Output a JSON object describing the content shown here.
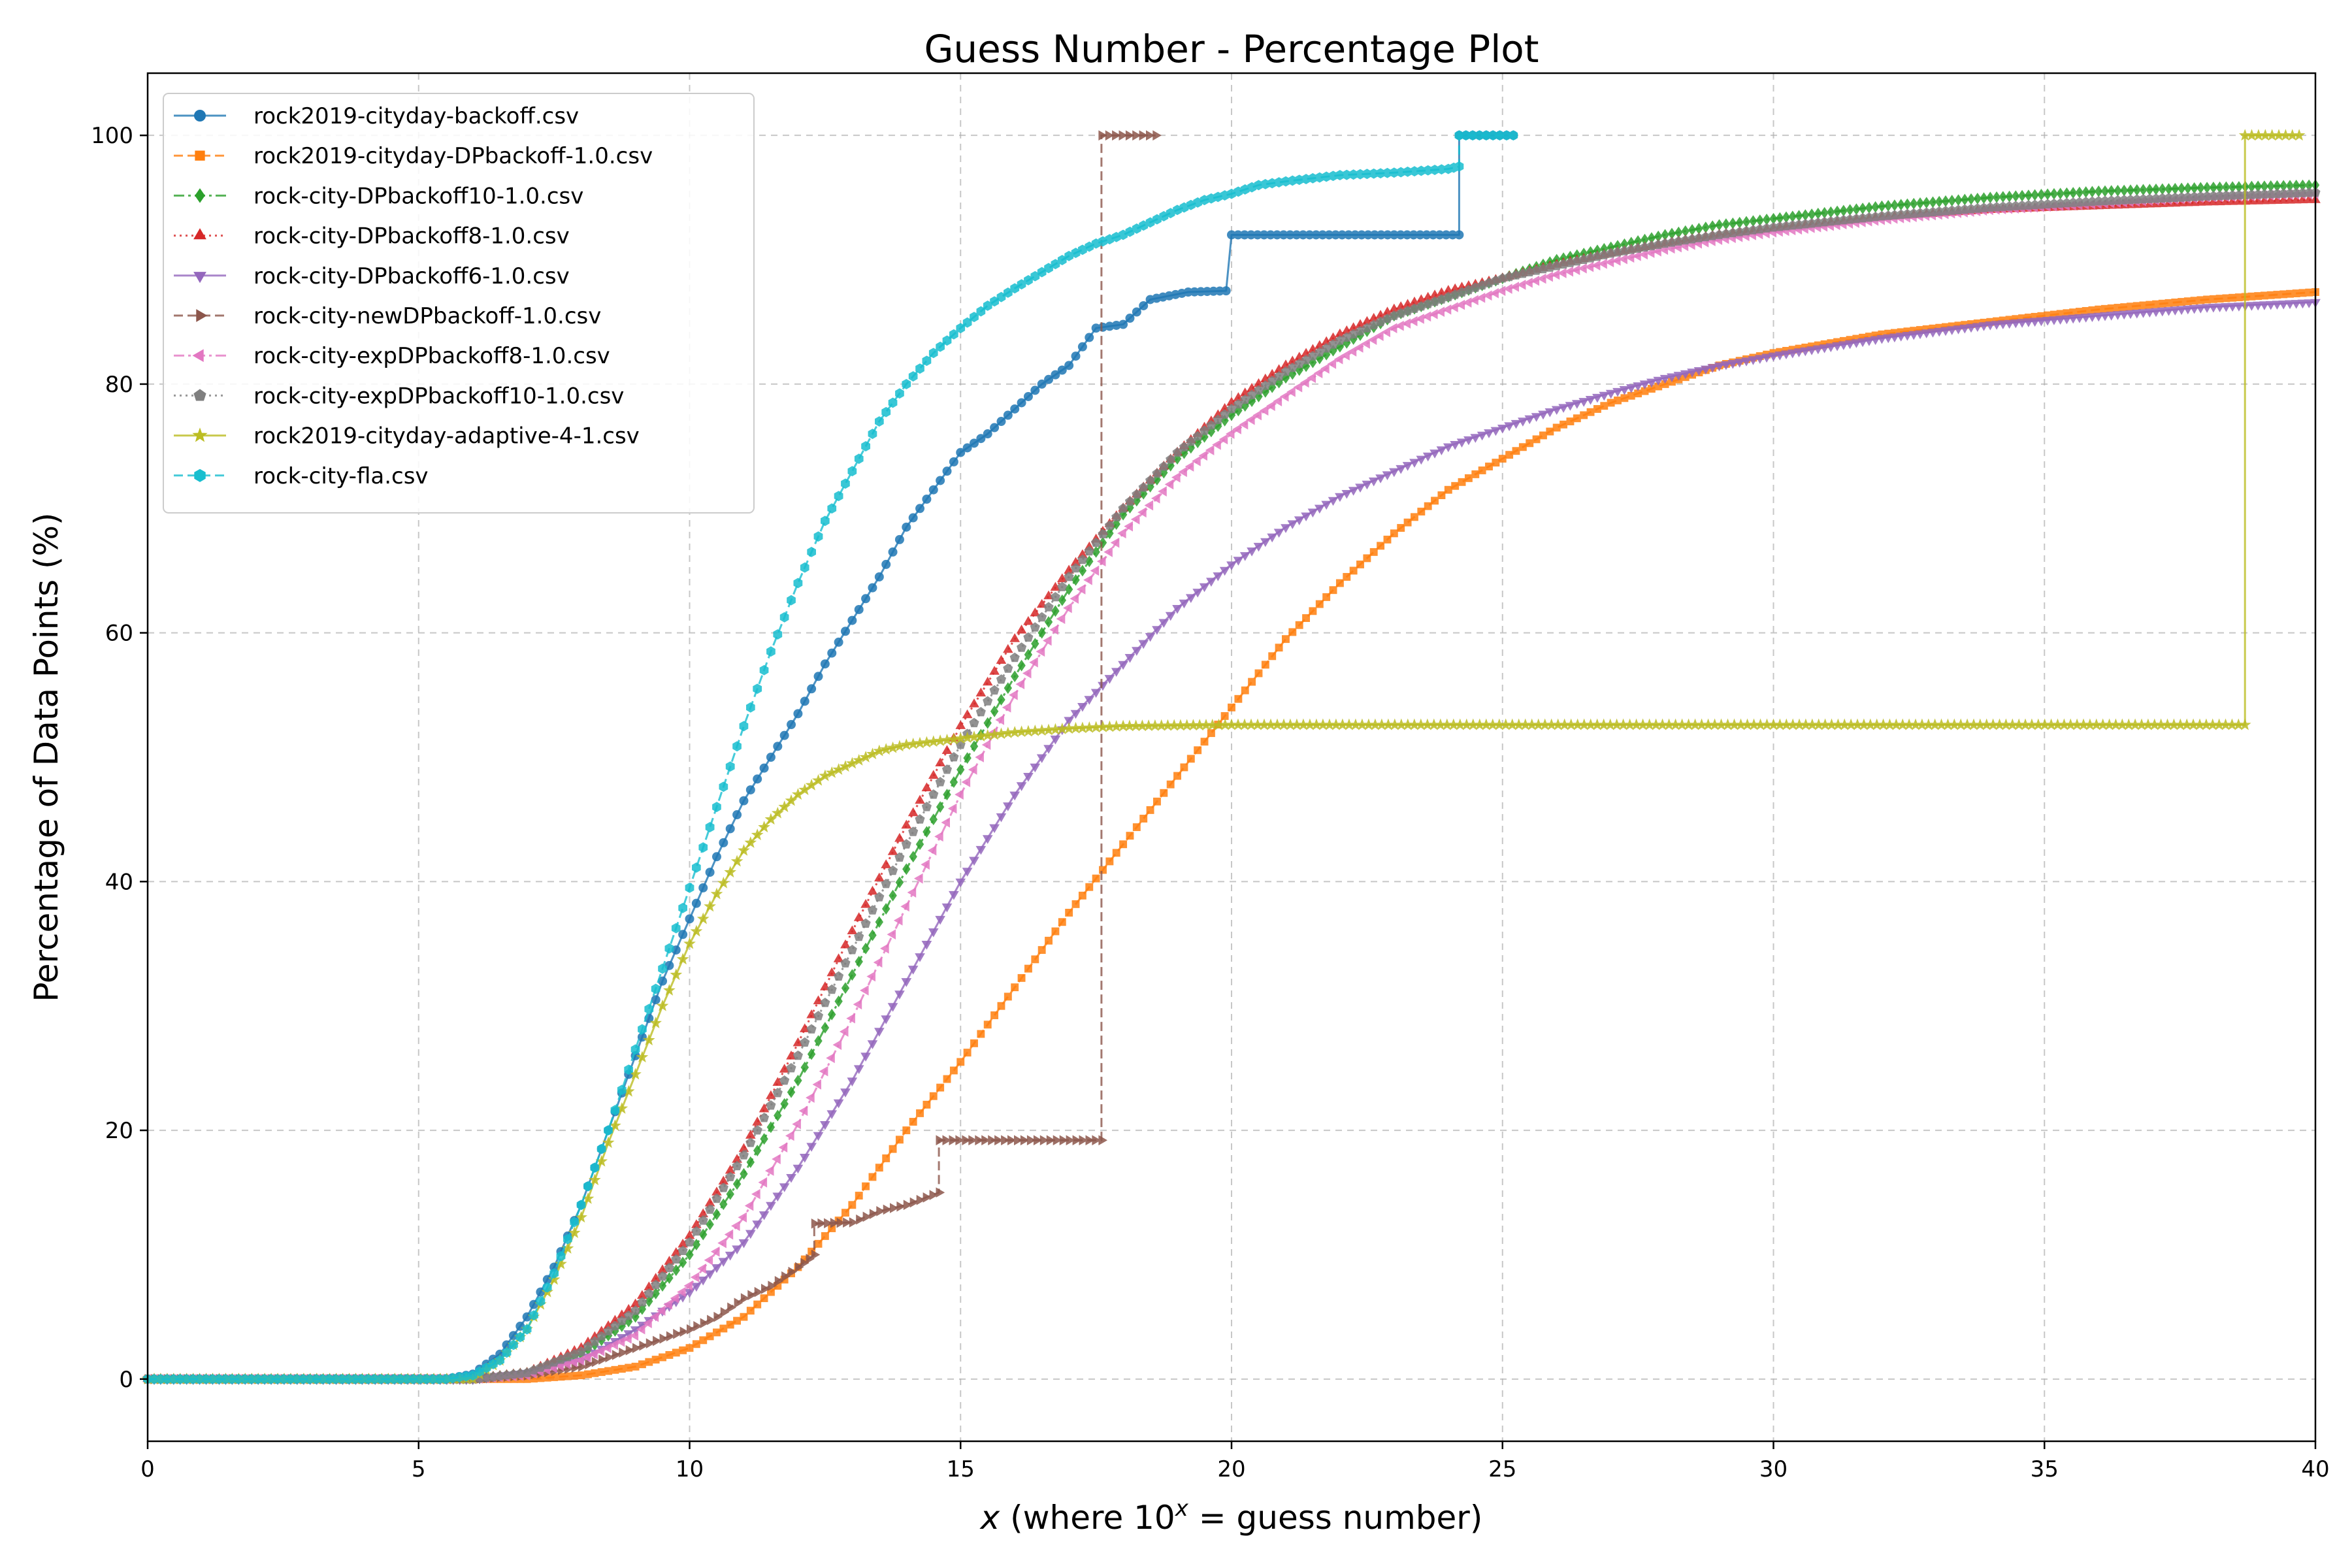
{
  "chart_data": {
    "type": "line",
    "title": "Guess Number - Percentage Plot",
    "xlabel_prefix": "x",
    "xlabel_middle": " (where 10",
    "xlabel_sup": "x",
    "xlabel_suffix": " = guess number)",
    "ylabel": "Percentage of Data Points (%)",
    "xlim": [
      0,
      40
    ],
    "ylim": [
      -5,
      105
    ],
    "xticks": [
      0,
      5,
      10,
      15,
      20,
      25,
      30,
      35,
      40
    ],
    "yticks": [
      0,
      20,
      40,
      60,
      80,
      100
    ],
    "grid": true,
    "legend_position": "top-left",
    "series": [
      {
        "name": "rock2019-cityday-backoff.csv",
        "color": "#1f77b4",
        "linestyle": "solid",
        "marker": "circle",
        "points": [
          [
            0,
            0
          ],
          [
            5,
            0
          ],
          [
            5.5,
            0
          ],
          [
            6,
            0.4
          ],
          [
            6.5,
            2
          ],
          [
            7,
            5
          ],
          [
            7.5,
            9
          ],
          [
            8,
            14
          ],
          [
            8.5,
            20
          ],
          [
            9,
            26
          ],
          [
            9.5,
            32
          ],
          [
            10,
            37
          ],
          [
            10.5,
            42
          ],
          [
            11,
            46.5
          ],
          [
            11.5,
            50
          ],
          [
            12,
            53.5
          ],
          [
            12.5,
            57.5
          ],
          [
            13,
            61
          ],
          [
            13.5,
            64.5
          ],
          [
            14,
            68.5
          ],
          [
            14.5,
            71.5
          ],
          [
            15,
            74.5
          ],
          [
            15.5,
            76
          ],
          [
            16,
            78
          ],
          [
            16.5,
            80
          ],
          [
            17,
            81.5
          ],
          [
            17.5,
            84.5
          ],
          [
            18,
            84.8
          ],
          [
            18.5,
            86.8
          ],
          [
            19.2,
            87.4
          ],
          [
            19.9,
            87.5
          ],
          [
            20,
            92
          ],
          [
            24.2,
            92
          ],
          [
            24.2,
            100
          ],
          [
            25.2,
            100
          ]
        ]
      },
      {
        "name": "rock2019-cityday-DPbackoff-1.0.csv",
        "color": "#ff7f0e",
        "linestyle": "dashed",
        "marker": "square",
        "points": [
          [
            0,
            0
          ],
          [
            7,
            0
          ],
          [
            8,
            0.3
          ],
          [
            9,
            1
          ],
          [
            10,
            2.5
          ],
          [
            11,
            5
          ],
          [
            12,
            9
          ],
          [
            13,
            14
          ],
          [
            14,
            20
          ],
          [
            15,
            25.5
          ],
          [
            16,
            31.5
          ],
          [
            17,
            37.5
          ],
          [
            18,
            43
          ],
          [
            19,
            48.5
          ],
          [
            20,
            54
          ],
          [
            21,
            59.5
          ],
          [
            22,
            64
          ],
          [
            23,
            68
          ],
          [
            24,
            71.5
          ],
          [
            25,
            74
          ],
          [
            26,
            76.5
          ],
          [
            27,
            78.5
          ],
          [
            28,
            80
          ],
          [
            29,
            81.5
          ],
          [
            30,
            82.5
          ],
          [
            32,
            84
          ],
          [
            34,
            85
          ],
          [
            36,
            86
          ],
          [
            38,
            86.8
          ],
          [
            40,
            87.4
          ]
        ]
      },
      {
        "name": "rock-city-DPbackoff10-1.0.csv",
        "color": "#2ca02c",
        "linestyle": "dashdot",
        "marker": "diamond",
        "points": [
          [
            0,
            0
          ],
          [
            6,
            0
          ],
          [
            7,
            0.5
          ],
          [
            8,
            2
          ],
          [
            9,
            5
          ],
          [
            10,
            10
          ],
          [
            11,
            16.5
          ],
          [
            12,
            24
          ],
          [
            13,
            32.5
          ],
          [
            14,
            41
          ],
          [
            15,
            49
          ],
          [
            16,
            56.5
          ],
          [
            17,
            63.5
          ],
          [
            18,
            69.5
          ],
          [
            19,
            74
          ],
          [
            20,
            77.5
          ],
          [
            21,
            80.5
          ],
          [
            22,
            83
          ],
          [
            23,
            85.5
          ],
          [
            24,
            87
          ],
          [
            25,
            88.5
          ],
          [
            26,
            90
          ],
          [
            27,
            91
          ],
          [
            28,
            92
          ],
          [
            29,
            92.8
          ],
          [
            30,
            93.3
          ],
          [
            32,
            94.3
          ],
          [
            34,
            95
          ],
          [
            36,
            95.5
          ],
          [
            38,
            95.8
          ],
          [
            40,
            96
          ]
        ]
      },
      {
        "name": "rock-city-DPbackoff8-1.0.csv",
        "color": "#d62728",
        "linestyle": "dotted",
        "marker": "triangle-up",
        "points": [
          [
            0,
            0
          ],
          [
            6,
            0
          ],
          [
            7,
            0.5
          ],
          [
            8,
            2.5
          ],
          [
            9,
            6
          ],
          [
            10,
            11.5
          ],
          [
            11,
            18.5
          ],
          [
            12,
            27
          ],
          [
            13,
            36
          ],
          [
            14,
            44.5
          ],
          [
            15,
            52.5
          ],
          [
            16,
            59.5
          ],
          [
            17,
            65
          ],
          [
            18,
            70
          ],
          [
            19,
            74.5
          ],
          [
            20,
            78.5
          ],
          [
            21,
            81.5
          ],
          [
            22,
            84
          ],
          [
            23,
            86
          ],
          [
            24,
            87.5
          ],
          [
            25,
            88.5
          ],
          [
            26,
            89.6
          ],
          [
            27,
            90.5
          ],
          [
            28,
            91.3
          ],
          [
            29,
            92
          ],
          [
            30,
            92.5
          ],
          [
            32,
            93.4
          ],
          [
            34,
            94
          ],
          [
            36,
            94.3
          ],
          [
            38,
            94.6
          ],
          [
            40,
            94.8
          ]
        ]
      },
      {
        "name": "rock-city-DPbackoff6-1.0.csv",
        "color": "#9467bd",
        "linestyle": "solid",
        "marker": "triangle-down",
        "points": [
          [
            0,
            0
          ],
          [
            6,
            0
          ],
          [
            7,
            0.5
          ],
          [
            8,
            1.5
          ],
          [
            9,
            4
          ],
          [
            10,
            7
          ],
          [
            11,
            11
          ],
          [
            12,
            17
          ],
          [
            13,
            24
          ],
          [
            14,
            32
          ],
          [
            15,
            40
          ],
          [
            16,
            47
          ],
          [
            17,
            53
          ],
          [
            18,
            57.5
          ],
          [
            19,
            62
          ],
          [
            20,
            65.5
          ],
          [
            21,
            68.5
          ],
          [
            22,
            71
          ],
          [
            23,
            73
          ],
          [
            24,
            75
          ],
          [
            25,
            76.5
          ],
          [
            26,
            78
          ],
          [
            27,
            79.3
          ],
          [
            28,
            80.5
          ],
          [
            29,
            81.5
          ],
          [
            30,
            82.3
          ],
          [
            32,
            83.7
          ],
          [
            34,
            84.8
          ],
          [
            36,
            85.5
          ],
          [
            38,
            86.2
          ],
          [
            40,
            86.6
          ]
        ]
      },
      {
        "name": "rock-city-newDPbackoff-1.0.csv",
        "color": "#8c564b",
        "linestyle": "dashed",
        "marker": "triangle-right",
        "points": [
          [
            0,
            0
          ],
          [
            6,
            0
          ],
          [
            7,
            0.3
          ],
          [
            8,
            1
          ],
          [
            9,
            2.5
          ],
          [
            10,
            4
          ],
          [
            10.5,
            5
          ],
          [
            11,
            6.5
          ],
          [
            11.5,
            7.5
          ],
          [
            12,
            9
          ],
          [
            12.3,
            10
          ],
          [
            12.3,
            12.5
          ],
          [
            13,
            12.6
          ],
          [
            13.5,
            13.5
          ],
          [
            14,
            14
          ],
          [
            14.6,
            15
          ],
          [
            14.6,
            19.2
          ],
          [
            17.6,
            19.2
          ],
          [
            17.6,
            100
          ],
          [
            18.6,
            100
          ]
        ]
      },
      {
        "name": "rock-city-expDPbackoff8-1.0.csv",
        "color": "#e377c2",
        "linestyle": "dashdot",
        "marker": "triangle-left",
        "points": [
          [
            0,
            0
          ],
          [
            6,
            0
          ],
          [
            7,
            0.3
          ],
          [
            8,
            1.5
          ],
          [
            9,
            3.5
          ],
          [
            10,
            7.5
          ],
          [
            11,
            13
          ],
          [
            12,
            20.5
          ],
          [
            13,
            29
          ],
          [
            14,
            38
          ],
          [
            15,
            47
          ],
          [
            16,
            55
          ],
          [
            17,
            62
          ],
          [
            18,
            68
          ],
          [
            19,
            72.5
          ],
          [
            20,
            76
          ],
          [
            21,
            79
          ],
          [
            22,
            82
          ],
          [
            23,
            84.5
          ],
          [
            24,
            86
          ],
          [
            25,
            87.5
          ],
          [
            26,
            88.8
          ],
          [
            27,
            89.8
          ],
          [
            28,
            90.8
          ],
          [
            29,
            91.6
          ],
          [
            30,
            92.2
          ],
          [
            32,
            93.2
          ],
          [
            34,
            94
          ],
          [
            36,
            94.5
          ],
          [
            38,
            95
          ],
          [
            40,
            95.3
          ]
        ]
      },
      {
        "name": "rock-city-expDPbackoff10-1.0.csv",
        "color": "#7f7f7f",
        "linestyle": "dotted",
        "marker": "pentagon",
        "points": [
          [
            0,
            0
          ],
          [
            6,
            0
          ],
          [
            7,
            0.5
          ],
          [
            8,
            2.2
          ],
          [
            9,
            5.5
          ],
          [
            10,
            11
          ],
          [
            11,
            18
          ],
          [
            12,
            26
          ],
          [
            13,
            34.5
          ],
          [
            14,
            43
          ],
          [
            15,
            51
          ],
          [
            16,
            58
          ],
          [
            17,
            64.5
          ],
          [
            18,
            70
          ],
          [
            19,
            74.5
          ],
          [
            20,
            78
          ],
          [
            21,
            81
          ],
          [
            22,
            83.5
          ],
          [
            23,
            85.5
          ],
          [
            24,
            87
          ],
          [
            25,
            88.5
          ],
          [
            26,
            89.5
          ],
          [
            27,
            90.5
          ],
          [
            28,
            91.3
          ],
          [
            29,
            92
          ],
          [
            30,
            92.6
          ],
          [
            32,
            93.5
          ],
          [
            34,
            94.2
          ],
          [
            36,
            94.7
          ],
          [
            38,
            95.1
          ],
          [
            40,
            95.4
          ]
        ]
      },
      {
        "name": "rock2019-cityday-adaptive-4-1.csv",
        "color": "#bcbd22",
        "linestyle": "solid",
        "marker": "star",
        "points": [
          [
            0,
            0
          ],
          [
            6,
            0
          ],
          [
            6.5,
            1.5
          ],
          [
            7,
            4
          ],
          [
            7.5,
            8
          ],
          [
            8,
            13
          ],
          [
            8.5,
            19
          ],
          [
            9,
            24.5
          ],
          [
            9.5,
            30
          ],
          [
            10,
            35
          ],
          [
            10.5,
            39
          ],
          [
            11,
            42.5
          ],
          [
            11.5,
            45
          ],
          [
            12,
            47
          ],
          [
            12.5,
            48.5
          ],
          [
            13,
            49.5
          ],
          [
            13.5,
            50.5
          ],
          [
            14,
            51
          ],
          [
            15,
            51.5
          ],
          [
            16,
            52
          ],
          [
            17,
            52.3
          ],
          [
            18,
            52.5
          ],
          [
            20,
            52.6
          ],
          [
            30,
            52.6
          ],
          [
            38.7,
            52.6
          ],
          [
            38.7,
            100
          ],
          [
            39.7,
            100
          ]
        ]
      },
      {
        "name": "rock-city-fla.csv",
        "color": "#17becf",
        "linestyle": "dashed",
        "marker": "hexagon",
        "points": [
          [
            0,
            0
          ],
          [
            5.5,
            0
          ],
          [
            6,
            0.3
          ],
          [
            6.5,
            1.5
          ],
          [
            7,
            4
          ],
          [
            7.5,
            8.5
          ],
          [
            8,
            14
          ],
          [
            8.5,
            20
          ],
          [
            9,
            26.5
          ],
          [
            9.5,
            33
          ],
          [
            10,
            39.5
          ],
          [
            10.5,
            46
          ],
          [
            11,
            52.5
          ],
          [
            11.5,
            58.5
          ],
          [
            12,
            64
          ],
          [
            12.5,
            69
          ],
          [
            13,
            73
          ],
          [
            13.5,
            77
          ],
          [
            14,
            80
          ],
          [
            14.5,
            82.5
          ],
          [
            15,
            84.5
          ],
          [
            15.5,
            86.3
          ],
          [
            16,
            87.7
          ],
          [
            16.5,
            89
          ],
          [
            17,
            90.3
          ],
          [
            17.5,
            91.3
          ],
          [
            18,
            92
          ],
          [
            18.5,
            93
          ],
          [
            19,
            94
          ],
          [
            19.5,
            94.8
          ],
          [
            20,
            95.3
          ],
          [
            20.5,
            96
          ],
          [
            21,
            96.3
          ],
          [
            22,
            96.8
          ],
          [
            23,
            97
          ],
          [
            24,
            97.3
          ],
          [
            24.2,
            97.5
          ],
          [
            24.2,
            100
          ],
          [
            25.2,
            100
          ]
        ]
      }
    ]
  }
}
